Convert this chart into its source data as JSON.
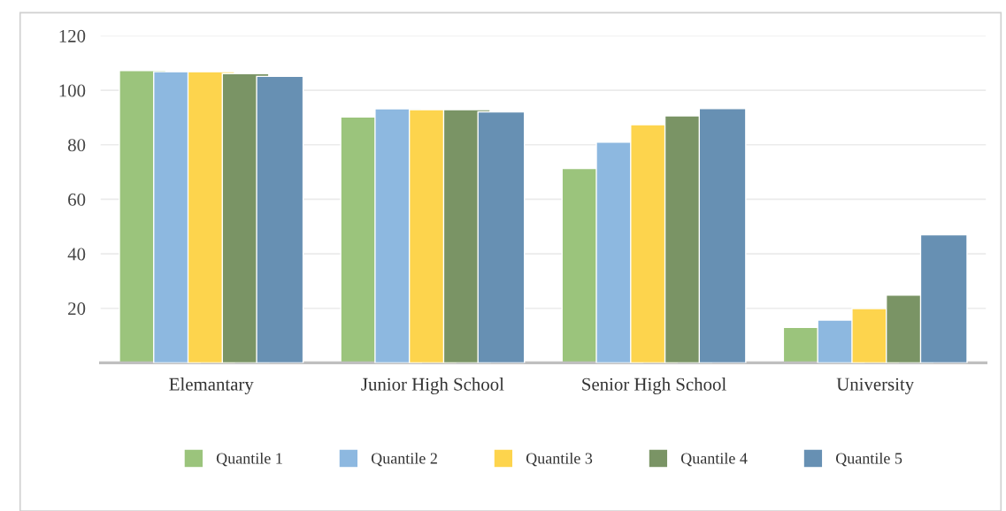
{
  "chart_data": {
    "type": "bar",
    "categories": [
      "Elemantary",
      "Junior High School",
      "Senior High School",
      "University"
    ],
    "series": [
      {
        "name": "Quantile 1",
        "color": "#9bc47c",
        "values": [
          107.2,
          90.2,
          71.3,
          13.0
        ]
      },
      {
        "name": "Quantile 2",
        "color": "#8db8e0",
        "values": [
          106.8,
          93.2,
          81.0,
          15.7
        ]
      },
      {
        "name": "Quantile 3",
        "color": "#fdd44d",
        "values": [
          106.8,
          92.9,
          87.4,
          19.9
        ]
      },
      {
        "name": "Quantile 4",
        "color": "#7a9465",
        "values": [
          106.1,
          92.9,
          90.6,
          24.8
        ]
      },
      {
        "name": "Quantile 5",
        "color": "#6790b3",
        "values": [
          105.1,
          92.1,
          93.3,
          47.0
        ]
      }
    ],
    "ylim": [
      0,
      120
    ],
    "yticks": [
      20,
      40,
      60,
      80,
      100,
      120
    ],
    "grid": "y",
    "legend": "bottom"
  }
}
